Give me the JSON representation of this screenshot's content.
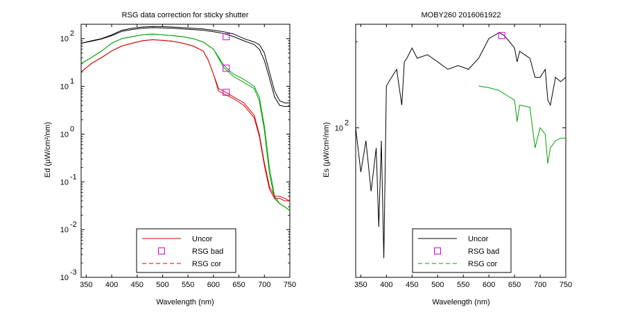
{
  "chart_data": [
    {
      "type": "line",
      "title": "RSG data correction for sticky shutter",
      "xlabel": "Wavelength (nm)",
      "ylabel": "Ed (µW/cm²/nm)",
      "xlim": [
        340,
        750
      ],
      "x_ticks": [
        "350",
        "400",
        "450",
        "500",
        "550",
        "600",
        "650",
        "700",
        "750"
      ],
      "y_scale": "log",
      "ylim": [
        0.001,
        200
      ],
      "y_ticks": [
        {
          "mant": "10",
          "exp": "-3"
        },
        {
          "mant": "10",
          "exp": "-2"
        },
        {
          "mant": "10",
          "exp": "-1"
        },
        {
          "mant": "10",
          "exp": "0"
        },
        {
          "mant": "10",
          "exp": "1"
        },
        {
          "mant": "10",
          "exp": "2"
        }
      ],
      "legend": {
        "location": "bottom-center",
        "entries": [
          {
            "label": "Uncor",
            "style": "line",
            "color": "#d00000"
          },
          {
            "label": "RSG bad",
            "style": "square",
            "color": "#cc00cc"
          },
          {
            "label": "RSG cor",
            "style": "dashed",
            "color": "#d00000"
          }
        ]
      },
      "series": [
        {
          "color": "#000000",
          "x": [
            340,
            360,
            380,
            400,
            420,
            440,
            460,
            480,
            500,
            520,
            540,
            560,
            580,
            600,
            620,
            640,
            660,
            680,
            690,
            700,
            710,
            720,
            730,
            740,
            750
          ],
          "y": [
            80,
            90,
            100,
            120,
            150,
            165,
            175,
            180,
            178,
            175,
            170,
            165,
            160,
            150,
            140,
            125,
            100,
            85,
            75,
            50,
            20,
            8,
            5,
            4.5,
            4.5
          ]
        },
        {
          "color": "#000000",
          "x": [
            340,
            360,
            380,
            400,
            420,
            440,
            460,
            480,
            500,
            520,
            540,
            560,
            580,
            600,
            620,
            640,
            660,
            680,
            690,
            700,
            710,
            720,
            730,
            740,
            750
          ],
          "y": [
            80,
            88,
            98,
            115,
            142,
            155,
            165,
            170,
            168,
            165,
            160,
            155,
            150,
            140,
            128,
            110,
            90,
            75,
            60,
            35,
            15,
            6,
            4,
            3.8,
            3.8
          ]
        },
        {
          "color": "#00a000",
          "x": [
            340,
            360,
            380,
            400,
            420,
            440,
            460,
            480,
            500,
            520,
            540,
            560,
            580,
            600,
            620,
            630,
            640,
            660,
            680,
            690,
            700,
            710,
            720,
            730,
            740,
            750
          ],
          "y": [
            30,
            40,
            55,
            80,
            100,
            110,
            120,
            125,
            120,
            115,
            110,
            100,
            85,
            60,
            28,
            22,
            18,
            14,
            10,
            6,
            1.5,
            0.2,
            0.05,
            0.035,
            0.03,
            0.025
          ]
        },
        {
          "color": "#00a000",
          "x": [
            340,
            360,
            380,
            400,
            420,
            440,
            460,
            480,
            500,
            520,
            540,
            560,
            580,
            600,
            620,
            630,
            640,
            660,
            680,
            690,
            700,
            710,
            720,
            730,
            740,
            750
          ],
          "y": [
            30,
            40,
            55,
            80,
            100,
            110,
            120,
            125,
            120,
            115,
            110,
            100,
            85,
            60,
            25,
            20,
            16,
            12,
            9,
            5,
            1.2,
            0.15,
            0.045,
            0.035,
            0.03,
            0.025
          ]
        },
        {
          "color": "#d00000",
          "x": [
            340,
            360,
            380,
            400,
            420,
            440,
            460,
            480,
            500,
            520,
            540,
            560,
            580,
            590,
            600,
            610,
            620,
            640,
            660,
            680,
            690,
            700,
            710,
            720,
            730,
            740,
            750
          ],
          "y": [
            20,
            30,
            40,
            55,
            70,
            80,
            90,
            95,
            92,
            88,
            80,
            70,
            55,
            35,
            18,
            9,
            8,
            6,
            4.5,
            2.5,
            1,
            0.25,
            0.08,
            0.05,
            0.05,
            0.045,
            0.04
          ]
        },
        {
          "color": "#d00000",
          "x": [
            340,
            360,
            380,
            400,
            420,
            440,
            460,
            480,
            500,
            520,
            540,
            560,
            580,
            590,
            600,
            610,
            620,
            640,
            660,
            680,
            690,
            700,
            710,
            720,
            730,
            740,
            750
          ],
          "y": [
            20,
            30,
            40,
            55,
            70,
            80,
            90,
            95,
            92,
            88,
            80,
            70,
            55,
            35,
            18,
            8,
            7,
            5.5,
            4,
            2.2,
            0.9,
            0.22,
            0.07,
            0.045,
            0.045,
            0.04,
            0.04
          ]
        }
      ],
      "markers": [
        {
          "x": 625,
          "y": 110,
          "color": "#cc00cc"
        },
        {
          "x": 625,
          "y": 24,
          "color": "#cc00cc"
        },
        {
          "x": 625,
          "y": 7.5,
          "color": "#cc00cc"
        }
      ]
    },
    {
      "type": "line",
      "title": "MOBY260  2016061922",
      "xlabel": "Wavelength (nm)",
      "ylabel": "Es (µW/cm²/nm)",
      "xlim": [
        340,
        750
      ],
      "x_ticks": [
        "350",
        "400",
        "450",
        "500",
        "550",
        "600",
        "650",
        "700",
        "750"
      ],
      "y_scale": "log",
      "ylim": [
        30,
        230
      ],
      "y_ticks": [
        {
          "mant": "10",
          "exp": "2"
        }
      ],
      "legend": {
        "location": "bottom-center",
        "entries": [
          {
            "label": "Uncor",
            "style": "line",
            "color": "#000000"
          },
          {
            "label": "RSG bad",
            "style": "square",
            "color": "#cc00cc"
          },
          {
            "label": "RSG cor",
            "style": "dashed",
            "color": "#00a000"
          }
        ]
      },
      "series": [
        {
          "color": "#000000",
          "x": [
            340,
            350,
            360,
            370,
            380,
            385,
            390,
            395,
            400,
            410,
            420,
            430,
            435,
            440,
            450,
            460,
            480,
            500,
            520,
            540,
            560,
            580,
            600,
            620,
            630,
            640,
            650,
            655,
            660,
            680,
            690,
            700,
            710,
            715,
            720,
            730,
            740,
            750
          ],
          "y": [
            100,
            70,
            90,
            60,
            85,
            45,
            90,
            35,
            140,
            150,
            160,
            120,
            170,
            175,
            190,
            175,
            180,
            170,
            160,
            165,
            160,
            175,
            205,
            215,
            210,
            200,
            190,
            170,
            185,
            175,
            150,
            150,
            160,
            125,
            120,
            150,
            145,
            150
          ]
        },
        {
          "color": "#00a000",
          "x": [
            580,
            600,
            620,
            640,
            650,
            655,
            660,
            680,
            690,
            700,
            710,
            715,
            720,
            730,
            740,
            750
          ],
          "y": [
            140,
            138,
            135,
            128,
            125,
            105,
            120,
            118,
            85,
            100,
            95,
            75,
            85,
            90,
            92,
            92
          ]
        }
      ],
      "markers": [
        {
          "x": 625,
          "y": 210,
          "color": "#cc00cc"
        }
      ]
    }
  ]
}
